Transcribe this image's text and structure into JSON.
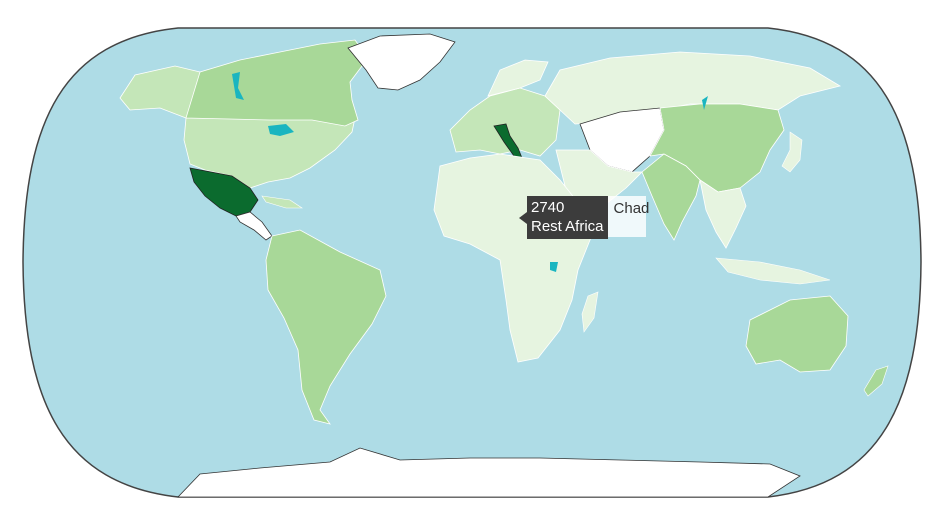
{
  "map": {
    "colors": {
      "ocean": "#aedce6",
      "land_lightest": "#e6f4e0",
      "land_light": "#c4e6b8",
      "land_medium": "#a8d898",
      "land_strong": "#8cca84",
      "land_darkest": "#0b6b2e",
      "no_data": "#ffffff",
      "lakes": "#1ab5c0",
      "border": "#222222"
    },
    "highlighted_countries": [
      "Mexico",
      "Italy"
    ],
    "no_data_regions": [
      "Greenland",
      "Antarctica",
      "Central Asia",
      "Central America"
    ]
  },
  "tooltip": {
    "value": "2740",
    "region": "Rest Africa",
    "hover_label": "Chad"
  }
}
